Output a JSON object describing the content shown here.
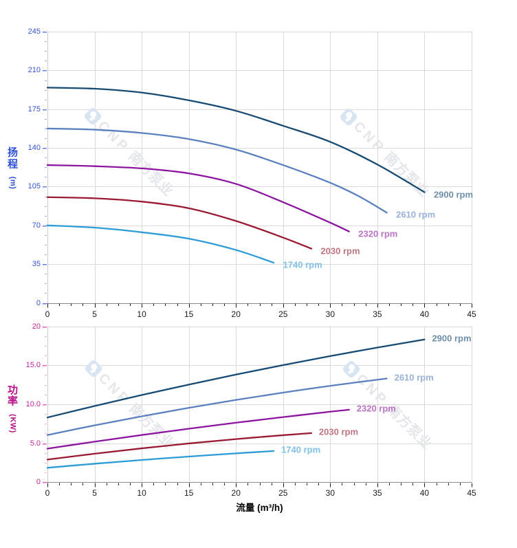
{
  "page": {
    "background": "#ffffff"
  },
  "watermark": {
    "logo": "cnp-rounded-square-logo",
    "text": "CNP 南方泵业",
    "color": "#e5e6ea",
    "logo_color": "#d9e4f3"
  },
  "xlabel": "流量 (m³/h)",
  "xlabel_color": "#000000",
  "chart_data": [
    {
      "type": "line",
      "title": "",
      "xlabel": "流量 (m³/h)",
      "ylabel": "扬程 (m)",
      "ylabel_cjk": "扬程",
      "ylabel_unit": "(m)",
      "xlim": [
        0,
        45
      ],
      "ylim": [
        0,
        245
      ],
      "x_major_step": 5,
      "x_minor_step": 1.25,
      "y_major_step": 35,
      "y_minor_step": 8.75,
      "grid": true,
      "x_tick_labels": [
        "0",
        "5",
        "10",
        "15",
        "20",
        "25",
        "30",
        "35",
        "40",
        "45"
      ],
      "y_tick_labels": [
        "0",
        "35",
        "70",
        "105",
        "140",
        "175",
        "210",
        "245"
      ],
      "legend_position": "right-of-line-end",
      "axis_style": {
        "y_tick_label_color": "#3252d8",
        "y_title_color": "#2b4fd6",
        "y_tick_major_color": "#6280e4",
        "y_tick_minor_color": "#9fb0f0",
        "x_tick_label_color": "#1a1a1a",
        "x_tick_color": "#1a1a1a",
        "grid_color": "#d9d9d9",
        "x_axis_color": "#8c8c8c",
        "y_axis_color": "#cfcfcf"
      },
      "series": [
        {
          "name": "2900 rpm",
          "color": "#164a73",
          "label_color": "#6f8ea8",
          "points": [
            [
              0,
              194.5
            ],
            [
              5,
              193.5
            ],
            [
              10,
              190
            ],
            [
              15,
              183
            ],
            [
              20,
              173.5
            ],
            [
              25,
              160
            ],
            [
              30,
              145.5
            ],
            [
              35,
              125
            ],
            [
              40,
              100
            ]
          ]
        },
        {
          "name": "2610 rpm",
          "color": "#5a80c0",
          "label_color": "#99b0d8",
          "points": [
            [
              0,
              157.5
            ],
            [
              5,
              156.5
            ],
            [
              10,
              153.5
            ],
            [
              15,
              148
            ],
            [
              20,
              138.5
            ],
            [
              25,
              124.5
            ],
            [
              30,
              108.5
            ],
            [
              33,
              96.5
            ],
            [
              36,
              81.5
            ]
          ]
        },
        {
          "name": "2320 rpm",
          "color": "#8d14a0",
          "label_color": "#b873c4",
          "points": [
            [
              0,
              124.5
            ],
            [
              5,
              123.5
            ],
            [
              10,
              121.5
            ],
            [
              15,
              117
            ],
            [
              20,
              107.5
            ],
            [
              25,
              91
            ],
            [
              30,
              72.5
            ],
            [
              32,
              64.5
            ]
          ]
        },
        {
          "name": "2030 rpm",
          "color": "#9b1a33",
          "label_color": "#bd7581",
          "points": [
            [
              0,
              95.5
            ],
            [
              5,
              94.5
            ],
            [
              10,
              91.5
            ],
            [
              15,
              85.5
            ],
            [
              20,
              74
            ],
            [
              25,
              59
            ],
            [
              28,
              49
            ]
          ]
        },
        {
          "name": "1740 rpm",
          "color": "#2d9bd6",
          "label_color": "#81c0e6",
          "points": [
            [
              0,
              70
            ],
            [
              5,
              68
            ],
            [
              10,
              63.8
            ],
            [
              15,
              58
            ],
            [
              20,
              47.8
            ],
            [
              24,
              36.3
            ]
          ]
        }
      ]
    },
    {
      "type": "line",
      "title": "",
      "xlabel": "流量 (m³/h)",
      "ylabel": "功率 (KW)",
      "ylabel_cjk": "功率",
      "ylabel_unit": "(KW)",
      "xlim": [
        0,
        45
      ],
      "ylim": [
        0,
        20
      ],
      "x_major_step": 5,
      "x_minor_step": 1.25,
      "y_major_step": 5,
      "y_minor_step": 1.25,
      "grid": true,
      "x_tick_labels": [
        "0",
        "5",
        "10",
        "15",
        "20",
        "25",
        "30",
        "35",
        "40",
        "45"
      ],
      "y_tick_labels": [
        "0",
        "5.0",
        "10.0",
        "15.0",
        "20"
      ],
      "legend_position": "right-of-line-end",
      "axis_style": {
        "y_tick_label_color": "#c1219b",
        "y_title_color": "#b60d88",
        "y_tick_major_color": "#ec60c8",
        "y_tick_minor_color": "#f6abe2",
        "x_tick_label_color": "#1a1a1a",
        "x_tick_color": "#1a1a1a",
        "grid_color": "#d9d9d9",
        "x_axis_color": "#8c8c8c",
        "y_axis_color": "#cfcfcf"
      },
      "series": [
        {
          "name": "2900 rpm",
          "color": "#164a73",
          "label_color": "#6f8ea8",
          "points": [
            [
              0,
              8.3
            ],
            [
              5,
              9.77
            ],
            [
              10,
              11.18
            ],
            [
              15,
              12.52
            ],
            [
              20,
              13.8
            ],
            [
              25,
              15.02
            ],
            [
              30,
              16.18
            ],
            [
              35,
              17.27
            ],
            [
              40,
              18.3
            ]
          ]
        },
        {
          "name": "2610 rpm",
          "color": "#5a80c0",
          "label_color": "#99b0d8",
          "points": [
            [
              0,
              6.05
            ],
            [
              5,
              7.29
            ],
            [
              10,
              8.45
            ],
            [
              15,
              9.54
            ],
            [
              20,
              10.55
            ],
            [
              25,
              11.49
            ],
            [
              30,
              12.36
            ],
            [
              36,
              13.3
            ]
          ]
        },
        {
          "name": "2320 rpm",
          "color": "#8d14a0",
          "label_color": "#b873c4",
          "points": [
            [
              0,
              4.3
            ],
            [
              5,
              5.2
            ],
            [
              10,
              6.05
            ],
            [
              15,
              6.86
            ],
            [
              20,
              7.63
            ],
            [
              25,
              8.35
            ],
            [
              30,
              9.04
            ],
            [
              32,
              9.3
            ]
          ]
        },
        {
          "name": "2030 rpm",
          "color": "#9b1a33",
          "label_color": "#bd7581",
          "points": [
            [
              0,
              2.9
            ],
            [
              5,
              3.65
            ],
            [
              10,
              4.34
            ],
            [
              15,
              4.97
            ],
            [
              20,
              5.53
            ],
            [
              25,
              6.03
            ],
            [
              28,
              6.3
            ]
          ]
        },
        {
          "name": "1740 rpm",
          "color": "#2d9bd6",
          "label_color": "#81c0e6",
          "points": [
            [
              0,
              1.85
            ],
            [
              5,
              2.37
            ],
            [
              10,
              2.85
            ],
            [
              15,
              3.29
            ],
            [
              20,
              3.7
            ],
            [
              24,
              4.0
            ]
          ]
        }
      ]
    }
  ]
}
